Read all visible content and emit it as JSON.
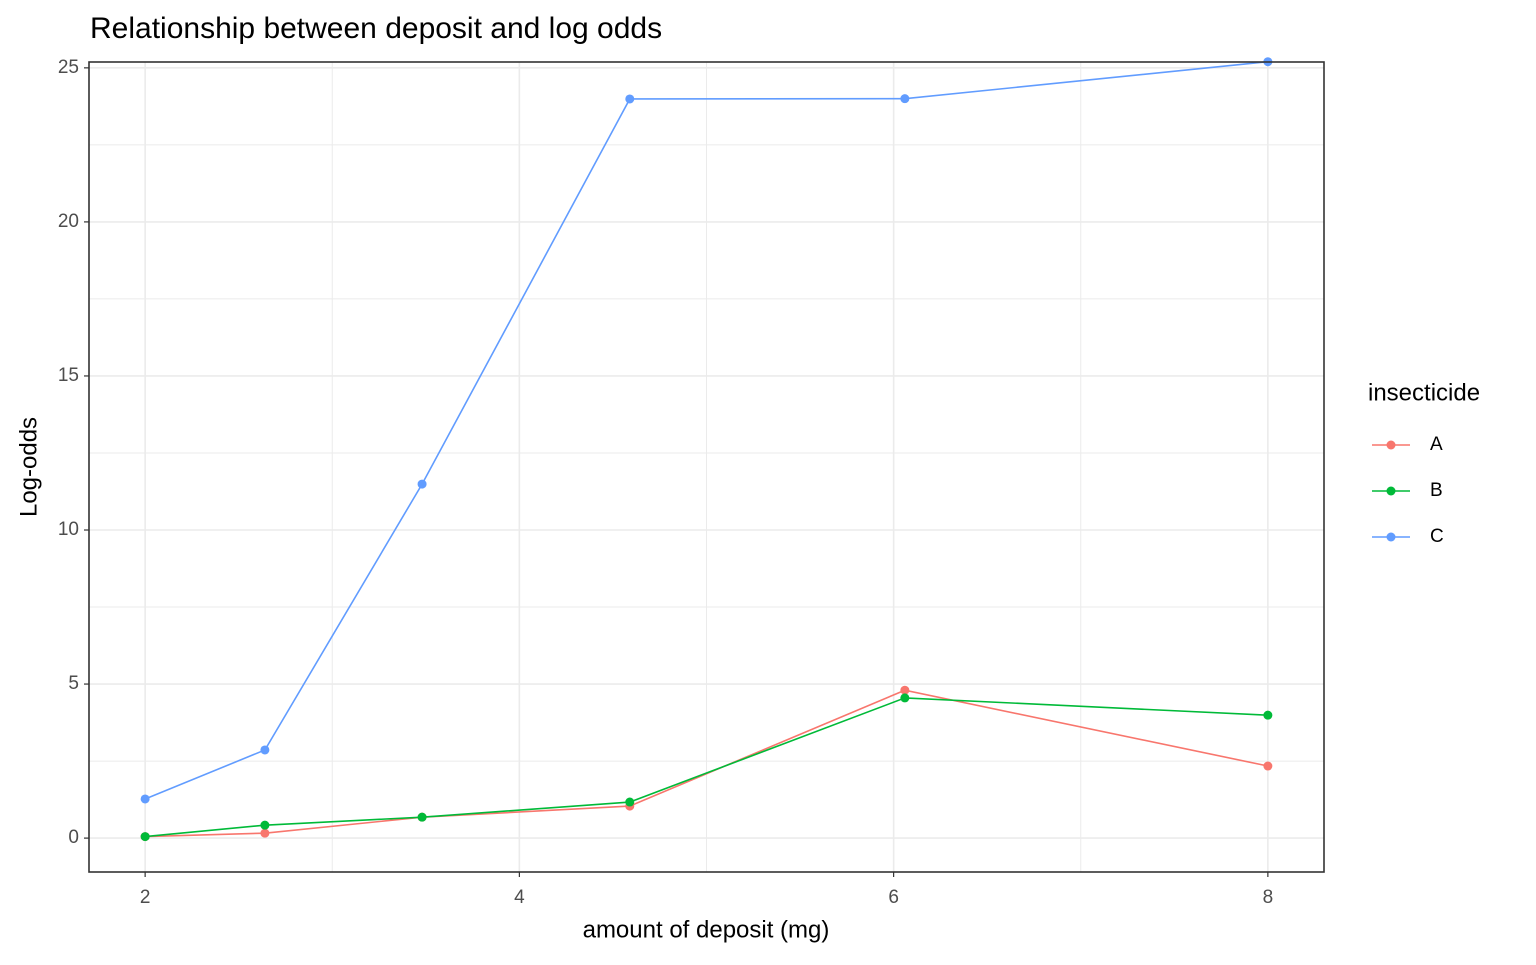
{
  "chart_data": {
    "type": "line",
    "title": "Relationship between deposit and log odds",
    "x_label": "amount of deposit (mg)",
    "y_label": "Log-odds",
    "legend_title": "insecticide",
    "x": [
      2.0,
      2.64,
      3.48,
      4.59,
      6.06,
      8.0
    ],
    "series": [
      {
        "name": "A",
        "color": "#F8766D",
        "values": [
          0.05,
          0.16,
          0.68,
          1.04,
          4.8,
          2.34
        ]
      },
      {
        "name": "B",
        "color": "#00BA38",
        "values": [
          0.05,
          0.42,
          0.68,
          1.17,
          4.55,
          3.99
        ]
      },
      {
        "name": "C",
        "color": "#619CFF",
        "values": [
          1.27,
          2.86,
          11.49,
          23.99,
          24.0,
          25.2
        ]
      }
    ],
    "xlim": [
      1.7,
      8.3
    ],
    "xticks": [
      2,
      4,
      6,
      8
    ],
    "ylim": [
      -1.1,
      25.19
    ],
    "yticks": [
      0,
      5,
      10,
      15,
      20,
      25
    ],
    "grid": true,
    "minor_grid": true,
    "legend": "right"
  }
}
